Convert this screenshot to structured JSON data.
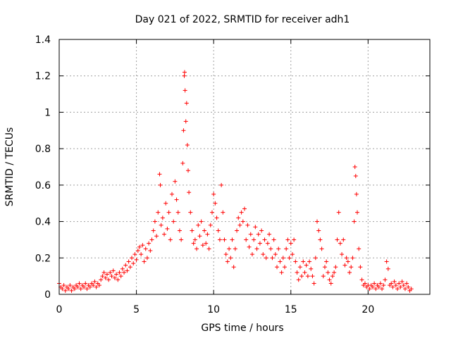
{
  "chart_data": {
    "type": "scatter",
    "title": "Day 021 of 2022, SRMTID for receiver adh1",
    "xlabel": "GPS time / hours",
    "ylabel": "SRMTID / TECUs",
    "xlim": [
      0,
      24
    ],
    "ylim": [
      0,
      1.4
    ],
    "xticks": [
      0,
      5,
      10,
      15,
      20
    ],
    "xtick_labels": [
      "0",
      "5",
      "10",
      "15",
      "20"
    ],
    "yticks": [
      0,
      0.2,
      0.4,
      0.6,
      0.8,
      1.0,
      1.2,
      1.4
    ],
    "ytick_labels": [
      "0",
      "0.2",
      "0.4",
      "0.6",
      "0.8",
      "1",
      "1.2",
      "1.4"
    ],
    "grid": true,
    "marker": "+",
    "color": "#ff0000",
    "series": [
      {
        "name": "SRMTID",
        "points": [
          [
            0.0,
            0.06
          ],
          [
            0.1,
            0.04
          ],
          [
            0.2,
            0.03
          ],
          [
            0.3,
            0.05
          ],
          [
            0.4,
            0.02
          ],
          [
            0.5,
            0.04
          ],
          [
            0.6,
            0.03
          ],
          [
            0.7,
            0.05
          ],
          [
            0.8,
            0.02
          ],
          [
            0.9,
            0.04
          ],
          [
            1.0,
            0.03
          ],
          [
            1.1,
            0.05
          ],
          [
            1.2,
            0.04
          ],
          [
            1.3,
            0.06
          ],
          [
            1.4,
            0.03
          ],
          [
            1.5,
            0.05
          ],
          [
            1.6,
            0.04
          ],
          [
            1.7,
            0.06
          ],
          [
            1.8,
            0.03
          ],
          [
            1.9,
            0.05
          ],
          [
            2.0,
            0.04
          ],
          [
            2.1,
            0.06
          ],
          [
            2.2,
            0.05
          ],
          [
            2.3,
            0.07
          ],
          [
            2.4,
            0.04
          ],
          [
            2.5,
            0.06
          ],
          [
            2.6,
            0.05
          ],
          [
            2.7,
            0.08
          ],
          [
            2.8,
            0.1
          ],
          [
            2.9,
            0.12
          ],
          [
            3.0,
            0.09
          ],
          [
            3.1,
            0.11
          ],
          [
            3.2,
            0.08
          ],
          [
            3.3,
            0.12
          ],
          [
            3.4,
            0.1
          ],
          [
            3.5,
            0.13
          ],
          [
            3.6,
            0.09
          ],
          [
            3.7,
            0.11
          ],
          [
            3.8,
            0.08
          ],
          [
            3.9,
            0.12
          ],
          [
            4.0,
            0.1
          ],
          [
            4.1,
            0.14
          ],
          [
            4.2,
            0.12
          ],
          [
            4.3,
            0.16
          ],
          [
            4.4,
            0.13
          ],
          [
            4.5,
            0.18
          ],
          [
            4.6,
            0.15
          ],
          [
            4.7,
            0.2
          ],
          [
            4.8,
            0.17
          ],
          [
            4.9,
            0.22
          ],
          [
            5.0,
            0.19
          ],
          [
            5.1,
            0.24
          ],
          [
            5.2,
            0.26
          ],
          [
            5.3,
            0.22
          ],
          [
            5.4,
            0.27
          ],
          [
            5.5,
            0.18
          ],
          [
            5.6,
            0.25
          ],
          [
            5.7,
            0.2
          ],
          [
            5.8,
            0.28
          ],
          [
            5.9,
            0.24
          ],
          [
            6.0,
            0.3
          ],
          [
            6.1,
            0.35
          ],
          [
            6.2,
            0.4
          ],
          [
            6.3,
            0.32
          ],
          [
            6.4,
            0.45
          ],
          [
            6.5,
            0.66
          ],
          [
            6.55,
            0.6
          ],
          [
            6.6,
            0.38
          ],
          [
            6.7,
            0.42
          ],
          [
            6.8,
            0.33
          ],
          [
            6.9,
            0.5
          ],
          [
            7.0,
            0.36
          ],
          [
            7.1,
            0.45
          ],
          [
            7.2,
            0.3
          ],
          [
            7.3,
            0.55
          ],
          [
            7.4,
            0.4
          ],
          [
            7.5,
            0.62
          ],
          [
            7.6,
            0.52
          ],
          [
            7.7,
            0.45
          ],
          [
            7.8,
            0.35
          ],
          [
            7.9,
            0.3
          ],
          [
            8.0,
            0.72
          ],
          [
            8.05,
            0.9
          ],
          [
            8.1,
            1.2
          ],
          [
            8.12,
            1.22
          ],
          [
            8.15,
            1.12
          ],
          [
            8.2,
            0.95
          ],
          [
            8.25,
            1.05
          ],
          [
            8.3,
            0.82
          ],
          [
            8.35,
            0.68
          ],
          [
            8.4,
            0.56
          ],
          [
            8.5,
            0.45
          ],
          [
            8.6,
            0.35
          ],
          [
            8.7,
            0.28
          ],
          [
            8.8,
            0.3
          ],
          [
            8.9,
            0.25
          ],
          [
            9.0,
            0.38
          ],
          [
            9.1,
            0.32
          ],
          [
            9.2,
            0.4
          ],
          [
            9.3,
            0.27
          ],
          [
            9.4,
            0.35
          ],
          [
            9.5,
            0.28
          ],
          [
            9.6,
            0.33
          ],
          [
            9.7,
            0.25
          ],
          [
            9.8,
            0.38
          ],
          [
            9.9,
            0.45
          ],
          [
            10.0,
            0.55
          ],
          [
            10.1,
            0.5
          ],
          [
            10.2,
            0.42
          ],
          [
            10.3,
            0.35
          ],
          [
            10.4,
            0.3
          ],
          [
            10.5,
            0.6
          ],
          [
            10.6,
            0.45
          ],
          [
            10.7,
            0.3
          ],
          [
            10.8,
            0.22
          ],
          [
            10.9,
            0.18
          ],
          [
            11.0,
            0.25
          ],
          [
            11.1,
            0.2
          ],
          [
            11.2,
            0.3
          ],
          [
            11.3,
            0.15
          ],
          [
            11.4,
            0.25
          ],
          [
            11.5,
            0.35
          ],
          [
            11.6,
            0.42
          ],
          [
            11.7,
            0.38
          ],
          [
            11.8,
            0.45
          ],
          [
            11.9,
            0.4
          ],
          [
            12.0,
            0.47
          ],
          [
            12.1,
            0.3
          ],
          [
            12.2,
            0.38
          ],
          [
            12.3,
            0.26
          ],
          [
            12.4,
            0.33
          ],
          [
            12.5,
            0.22
          ],
          [
            12.6,
            0.3
          ],
          [
            12.7,
            0.37
          ],
          [
            12.8,
            0.25
          ],
          [
            12.9,
            0.33
          ],
          [
            13.0,
            0.28
          ],
          [
            13.1,
            0.35
          ],
          [
            13.2,
            0.22
          ],
          [
            13.3,
            0.3
          ],
          [
            13.4,
            0.2
          ],
          [
            13.5,
            0.28
          ],
          [
            13.6,
            0.33
          ],
          [
            13.7,
            0.25
          ],
          [
            13.8,
            0.2
          ],
          [
            13.9,
            0.3
          ],
          [
            14.0,
            0.22
          ],
          [
            14.1,
            0.15
          ],
          [
            14.2,
            0.25
          ],
          [
            14.3,
            0.18
          ],
          [
            14.4,
            0.12
          ],
          [
            14.5,
            0.2
          ],
          [
            14.6,
            0.15
          ],
          [
            14.7,
            0.25
          ],
          [
            14.8,
            0.3
          ],
          [
            14.9,
            0.2
          ],
          [
            15.0,
            0.28
          ],
          [
            15.1,
            0.22
          ],
          [
            15.2,
            0.3
          ],
          [
            15.3,
            0.18
          ],
          [
            15.4,
            0.12
          ],
          [
            15.5,
            0.08
          ],
          [
            15.6,
            0.15
          ],
          [
            15.7,
            0.1
          ],
          [
            15.8,
            0.18
          ],
          [
            15.9,
            0.12
          ],
          [
            16.0,
            0.16
          ],
          [
            16.1,
            0.1
          ],
          [
            16.2,
            0.18
          ],
          [
            16.3,
            0.14
          ],
          [
            16.4,
            0.1
          ],
          [
            16.5,
            0.06
          ],
          [
            16.6,
            0.2
          ],
          [
            16.7,
            0.4
          ],
          [
            16.8,
            0.35
          ],
          [
            16.9,
            0.3
          ],
          [
            17.0,
            0.25
          ],
          [
            17.1,
            0.1
          ],
          [
            17.2,
            0.15
          ],
          [
            17.3,
            0.18
          ],
          [
            17.4,
            0.12
          ],
          [
            17.5,
            0.08
          ],
          [
            17.6,
            0.06
          ],
          [
            17.7,
            0.1
          ],
          [
            17.8,
            0.12
          ],
          [
            17.9,
            0.15
          ],
          [
            18.0,
            0.3
          ],
          [
            18.1,
            0.45
          ],
          [
            18.2,
            0.28
          ],
          [
            18.3,
            0.22
          ],
          [
            18.4,
            0.3
          ],
          [
            18.5,
            0.16
          ],
          [
            18.6,
            0.2
          ],
          [
            18.7,
            0.18
          ],
          [
            18.8,
            0.12
          ],
          [
            18.9,
            0.15
          ],
          [
            19.0,
            0.2
          ],
          [
            19.1,
            0.4
          ],
          [
            19.15,
            0.7
          ],
          [
            19.2,
            0.65
          ],
          [
            19.25,
            0.55
          ],
          [
            19.3,
            0.45
          ],
          [
            19.4,
            0.25
          ],
          [
            19.5,
            0.15
          ],
          [
            19.6,
            0.08
          ],
          [
            19.7,
            0.05
          ],
          [
            19.8,
            0.06
          ],
          [
            19.9,
            0.04
          ],
          [
            20.0,
            0.05
          ],
          [
            20.1,
            0.03
          ],
          [
            20.2,
            0.05
          ],
          [
            20.3,
            0.04
          ],
          [
            20.4,
            0.06
          ],
          [
            20.5,
            0.03
          ],
          [
            20.6,
            0.05
          ],
          [
            20.7,
            0.04
          ],
          [
            20.8,
            0.06
          ],
          [
            20.9,
            0.03
          ],
          [
            21.0,
            0.05
          ],
          [
            21.1,
            0.08
          ],
          [
            21.2,
            0.18
          ],
          [
            21.3,
            0.14
          ],
          [
            21.4,
            0.05
          ],
          [
            21.5,
            0.06
          ],
          [
            21.6,
            0.04
          ],
          [
            21.7,
            0.07
          ],
          [
            21.8,
            0.05
          ],
          [
            21.9,
            0.03
          ],
          [
            22.0,
            0.06
          ],
          [
            22.1,
            0.04
          ],
          [
            22.2,
            0.07
          ],
          [
            22.3,
            0.05
          ],
          [
            22.4,
            0.03
          ],
          [
            22.5,
            0.06
          ],
          [
            22.6,
            0.04
          ],
          [
            22.7,
            0.02
          ],
          [
            22.8,
            0.03
          ]
        ]
      }
    ]
  }
}
